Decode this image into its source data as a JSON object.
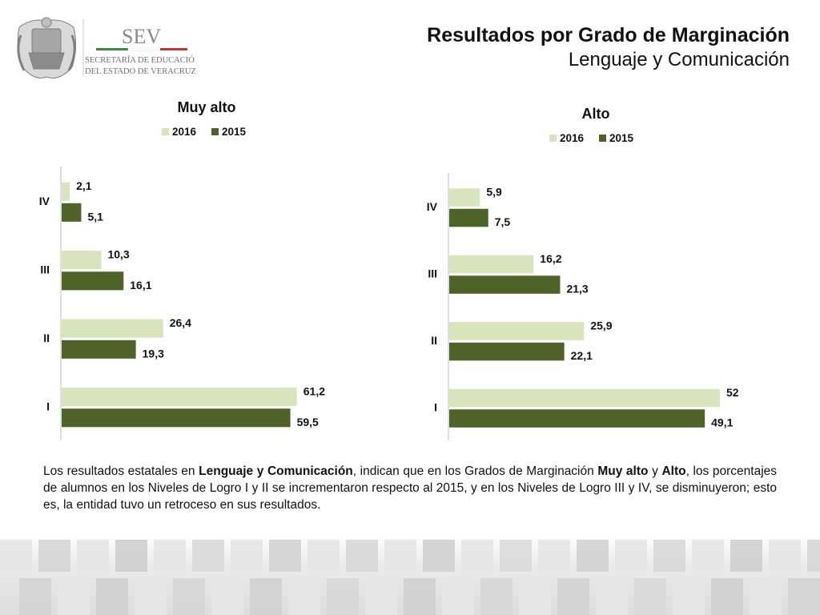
{
  "header": {
    "logo_acronym": "SEV",
    "logo_line1": "SECRETARÍA DE EDUCACIÓN",
    "logo_line2": "DEL ESTADO DE VERACRUZ",
    "title": "Resultados por Grado de Marginación",
    "subtitle": "Lenguaje y Comunicación"
  },
  "colors": {
    "series_2016": "#d8e4bc",
    "series_2015": "#4f6228",
    "axis": "#bfbfbf"
  },
  "chart_data": [
    {
      "type": "bar",
      "orientation": "horizontal",
      "title": "Muy alto",
      "categories": [
        "IV",
        "III",
        "II",
        "I"
      ],
      "series": [
        {
          "name": "2016",
          "values": [
            2.1,
            10.3,
            26.4,
            61.2
          ],
          "labels": [
            "2,1",
            "10,3",
            "26,4",
            "61,2"
          ]
        },
        {
          "name": "2015",
          "values": [
            5.1,
            16.1,
            19.3,
            59.5
          ],
          "labels": [
            "5,1",
            "16,1",
            "19,3",
            "59,5"
          ]
        }
      ],
      "legend_position": "top",
      "grid": false
    },
    {
      "type": "bar",
      "orientation": "horizontal",
      "title": "Alto",
      "categories": [
        "IV",
        "III",
        "II",
        "I"
      ],
      "series": [
        {
          "name": "2016",
          "values": [
            5.9,
            16.2,
            25.9,
            52
          ],
          "labels": [
            "5,9",
            "16,2",
            "25,9",
            "52"
          ]
        },
        {
          "name": "2015",
          "values": [
            7.5,
            21.3,
            22.1,
            49.1
          ],
          "labels": [
            "7,5",
            "21,3",
            "22,1",
            "49,1"
          ]
        }
      ],
      "legend_position": "top",
      "grid": false
    }
  ],
  "body": {
    "p1": "Los resultados estatales en ",
    "b1": "Lenguaje y Comunicación",
    "p2": ", indican que en los Grados de Marginación ",
    "b2": "Muy alto",
    "p3": " y ",
    "b3": "Alto",
    "p4": ", los porcentajes de alumnos en los Niveles de Logro I y II se incrementaron respecto al 2015, y en los Niveles de Logro III y IV, se disminuyeron; esto es, la entidad tuvo un retroceso en sus resultados."
  }
}
